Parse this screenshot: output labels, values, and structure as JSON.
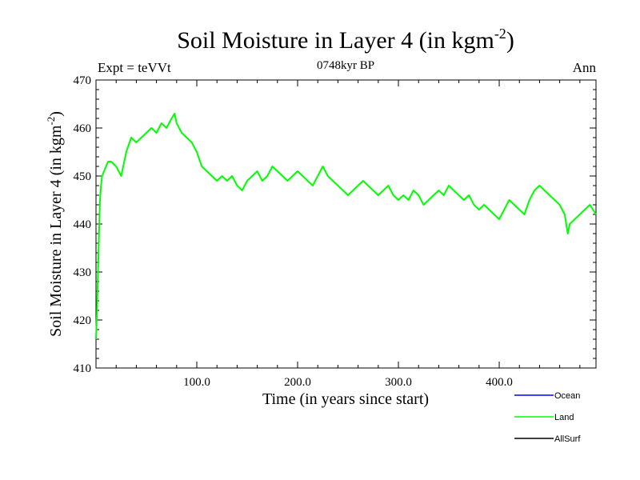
{
  "header": {
    "title_main": "Soil Moisture in Layer 4 (in kgm",
    "title_sup": "-2",
    "title_close": ")",
    "left_label": "Expt = teVVt",
    "center_label": "0748kyr BP",
    "right_label": "Ann"
  },
  "chart_data": {
    "type": "line",
    "xlabel": "Time (in years since start)",
    "ylabel_main": "Soil Moisture in Layer 4 (in kgm",
    "ylabel_sup": "-2",
    "ylabel_close": ")",
    "xlim": [
      0,
      496
    ],
    "ylim": [
      410,
      470
    ],
    "x_ticks": [
      {
        "value": 100,
        "label": "100.0"
      },
      {
        "value": 200,
        "label": "200.0"
      },
      {
        "value": 300,
        "label": "300.0"
      },
      {
        "value": 400,
        "label": "400.0"
      }
    ],
    "y_ticks": [
      {
        "value": 410,
        "label": "410"
      },
      {
        "value": 420,
        "label": "420"
      },
      {
        "value": 430,
        "label": "430"
      },
      {
        "value": 440,
        "label": "440"
      },
      {
        "value": 450,
        "label": "450"
      },
      {
        "value": 460,
        "label": "460"
      },
      {
        "value": 470,
        "label": "470"
      }
    ],
    "legend": {
      "placement": "bottom-right",
      "entries": [
        {
          "name": "Ocean",
          "color": "#0000ff"
        },
        {
          "name": "Land",
          "color": "#00ff00"
        },
        {
          "name": "AllSurf",
          "color": "#000000"
        }
      ]
    },
    "series": [
      {
        "name": "Land",
        "color": "#00ff00",
        "x": [
          0,
          1,
          2,
          3,
          4,
          5,
          6,
          8,
          10,
          12,
          15,
          20,
          25,
          28,
          30,
          35,
          40,
          45,
          50,
          55,
          60,
          65,
          70,
          75,
          78,
          80,
          85,
          90,
          95,
          100,
          105,
          110,
          115,
          120,
          125,
          130,
          135,
          140,
          145,
          150,
          155,
          160,
          165,
          170,
          175,
          180,
          185,
          190,
          195,
          200,
          205,
          210,
          215,
          220,
          225,
          230,
          235,
          240,
          245,
          250,
          255,
          260,
          265,
          270,
          275,
          280,
          285,
          290,
          295,
          300,
          305,
          310,
          315,
          320,
          325,
          330,
          335,
          340,
          345,
          350,
          355,
          360,
          365,
          370,
          375,
          380,
          385,
          390,
          395,
          400,
          405,
          410,
          415,
          420,
          425,
          430,
          435,
          440,
          445,
          450,
          455,
          460,
          465,
          468,
          470,
          475,
          480,
          485,
          490,
          496
        ],
        "values": [
          416,
          422,
          430,
          438,
          445,
          448,
          450,
          451,
          452,
          453,
          453,
          452,
          450,
          453,
          455,
          458,
          457,
          458,
          459,
          460,
          459,
          461,
          460,
          462,
          463,
          461,
          459,
          458,
          457,
          455,
          452,
          451,
          450,
          449,
          450,
          449,
          450,
          448,
          447,
          449,
          450,
          451,
          449,
          450,
          452,
          451,
          450,
          449,
          450,
          451,
          450,
          449,
          448,
          450,
          452,
          450,
          449,
          448,
          447,
          446,
          447,
          448,
          449,
          448,
          447,
          446,
          447,
          448,
          446,
          445,
          446,
          445,
          447,
          446,
          444,
          445,
          446,
          447,
          446,
          448,
          447,
          446,
          445,
          446,
          444,
          443,
          444,
          443,
          442,
          441,
          443,
          445,
          444,
          443,
          442,
          445,
          447,
          448,
          447,
          446,
          445,
          444,
          442,
          438,
          440,
          441,
          442,
          443,
          444,
          442
        ]
      }
    ]
  }
}
